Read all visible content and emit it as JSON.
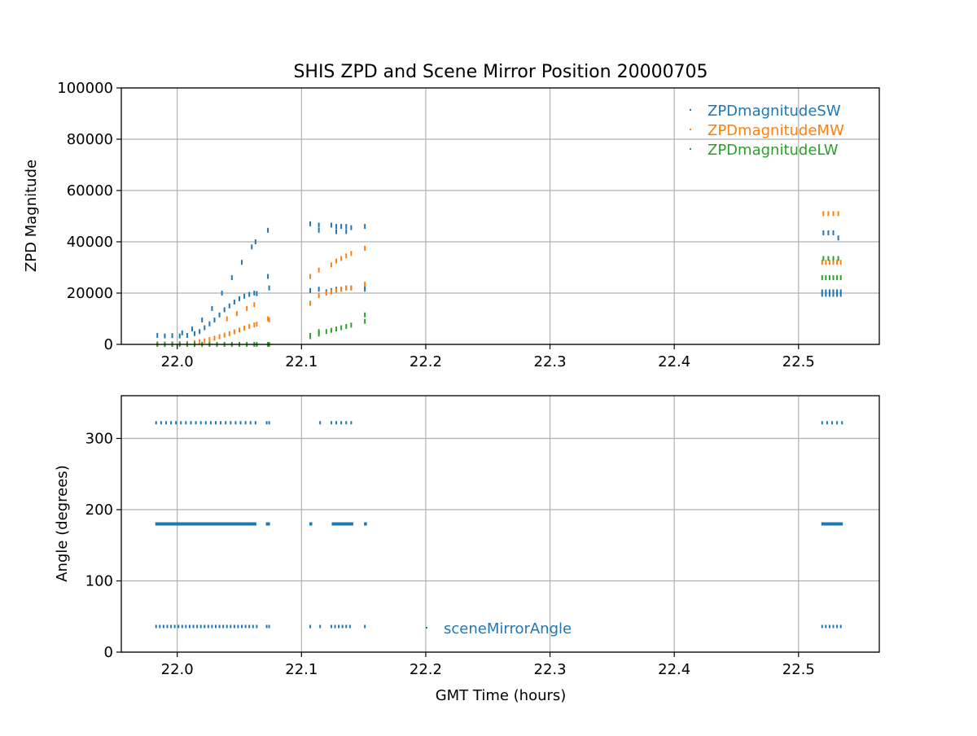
{
  "title": "SHIS ZPD and Scene Mirror Position 20000705",
  "colors": {
    "sw": "#1f77b4",
    "mw": "#ff7f0e",
    "lw": "#2ca02c",
    "angle": "#1f77b4",
    "grid": "#b0b0b0"
  },
  "chart_data": [
    {
      "type": "scatter",
      "title": "SHIS ZPD and Scene Mirror Position 20000705",
      "xlabel": "",
      "ylabel": "ZPD Magnitude",
      "xlim": [
        21.955,
        22.565
      ],
      "ylim": [
        0,
        100000
      ],
      "x_ticks": [
        "22.0",
        "22.1",
        "22.2",
        "22.3",
        "22.4",
        "22.5"
      ],
      "y_ticks": [
        "0",
        "20000",
        "40000",
        "60000",
        "80000",
        "100000"
      ],
      "grid": true,
      "legend": "top-right",
      "series": [
        {
          "name": "ZPDmagnitudeSW",
          "x": [
            21.984,
            21.99,
            21.996,
            22.002,
            22.008,
            22.014,
            22.018,
            22.022,
            22.026,
            22.03,
            22.034,
            22.038,
            22.042,
            22.046,
            22.05,
            22.054,
            22.058,
            22.062,
            22.064,
            22.004,
            22.012,
            22.02,
            22.028,
            22.036,
            22.044,
            22.052,
            22.06,
            22.063,
            22.073,
            22.074,
            22.073,
            22.107,
            22.107,
            22.114,
            22.114,
            22.114,
            22.124,
            22.128,
            22.132,
            22.136,
            22.14,
            22.128,
            22.136,
            22.12,
            22.124,
            22.128,
            22.132,
            22.136,
            22.14,
            22.151,
            22.151,
            22.151,
            22.519,
            22.522,
            22.525,
            22.528,
            22.531,
            22.534,
            22.519,
            22.522,
            22.525,
            22.528,
            22.531,
            22.534,
            22.52,
            22.524,
            22.528,
            22.532
          ],
          "y": [
            3500,
            3300,
            3400,
            3300,
            3500,
            4200,
            5000,
            6500,
            8000,
            9500,
            11500,
            13500,
            15000,
            16500,
            17800,
            18800,
            19500,
            20000,
            19800,
            4500,
            6000,
            9500,
            14000,
            20000,
            26000,
            32000,
            38000,
            40000,
            44500,
            22000,
            26500,
            47000,
            21000,
            46500,
            44500,
            21500,
            46500,
            46000,
            46000,
            46000,
            45500,
            44000,
            44000,
            20500,
            21000,
            21500,
            21500,
            22000,
            22000,
            46000,
            21500,
            22500,
            19500,
            19500,
            19500,
            19500,
            19500,
            19500,
            20500,
            20500,
            20500,
            20500,
            20500,
            20500,
            43500,
            43500,
            43500,
            41500
          ]
        },
        {
          "name": "ZPDmagnitudeMW",
          "x": [
            21.984,
            21.99,
            21.996,
            22.002,
            22.008,
            22.014,
            22.018,
            22.022,
            22.026,
            22.03,
            22.034,
            22.038,
            22.042,
            22.046,
            22.05,
            22.054,
            22.058,
            22.062,
            22.064,
            22.04,
            22.048,
            22.056,
            22.062,
            22.073,
            22.074,
            22.107,
            22.107,
            22.114,
            22.114,
            22.12,
            22.124,
            22.128,
            22.132,
            22.136,
            22.14,
            22.124,
            22.128,
            22.132,
            22.136,
            22.14,
            22.151,
            22.151,
            22.519,
            22.522,
            22.525,
            22.528,
            22.531,
            22.534,
            22.52,
            22.524,
            22.528,
            22.532
          ],
          "y": [
            200,
            200,
            250,
            300,
            400,
            700,
            1000,
            1400,
            1900,
            2400,
            3000,
            3600,
            4200,
            4900,
            5600,
            6300,
            7000,
            7600,
            7900,
            10000,
            12000,
            14000,
            15500,
            10000,
            9500,
            26500,
            16000,
            29000,
            19000,
            20000,
            20500,
            21000,
            21500,
            22000,
            22000,
            31000,
            32500,
            33500,
            34500,
            35500,
            37500,
            23500,
            32000,
            32000,
            32000,
            32000,
            32000,
            32000,
            51000,
            51000,
            51000,
            51000
          ]
        },
        {
          "name": "ZPDmagnitudeLW",
          "x": [
            21.984,
            21.99,
            21.996,
            22.002,
            22.008,
            22.014,
            22.02,
            22.026,
            22.032,
            22.038,
            22.044,
            22.05,
            22.056,
            22.062,
            22.064,
            22.073,
            22.074,
            22.107,
            22.107,
            22.114,
            22.114,
            22.12,
            22.124,
            22.128,
            22.132,
            22.136,
            22.14,
            22.151,
            22.151,
            22.519,
            22.522,
            22.525,
            22.528,
            22.531,
            22.534,
            22.52,
            22.524,
            22.528,
            22.532
          ],
          "y": [
            0,
            0,
            0,
            0,
            0,
            0,
            0,
            0,
            0,
            0,
            0,
            0,
            0,
            0,
            0,
            0,
            0,
            3500,
            3000,
            5000,
            4000,
            5000,
            5500,
            6000,
            6500,
            7000,
            7500,
            11500,
            9000,
            26000,
            26000,
            26000,
            26000,
            26000,
            26000,
            33500,
            33500,
            33500,
            33500
          ]
        }
      ]
    },
    {
      "type": "scatter",
      "title": "",
      "xlabel": "GMT Time (hours)",
      "ylabel": "Angle (degrees)",
      "xlim": [
        21.955,
        22.565
      ],
      "ylim": [
        0,
        360
      ],
      "x_ticks": [
        "22.0",
        "22.1",
        "22.2",
        "22.3",
        "22.4",
        "22.5"
      ],
      "y_ticks": [
        "0",
        "100",
        "200",
        "300"
      ],
      "grid": true,
      "legend": "lower-center",
      "series": [
        {
          "name": "sceneMirrorAngle",
          "segments": [
            {
              "x_start": 21.983,
              "x_end": 22.063,
              "y": 322,
              "step": 0.004
            },
            {
              "x_start": 22.072,
              "x_end": 22.074,
              "y": 322,
              "step": 0.002
            },
            {
              "x_start": 22.115,
              "x_end": 22.115,
              "y": 322,
              "step": 0.004
            },
            {
              "x_start": 22.124,
              "x_end": 22.14,
              "y": 322,
              "step": 0.004
            },
            {
              "x_start": 22.519,
              "x_end": 22.535,
              "y": 322,
              "step": 0.004
            },
            {
              "x_start": 21.983,
              "x_end": 22.063,
              "y": 180,
              "step": 0.001
            },
            {
              "x_start": 22.072,
              "x_end": 22.074,
              "y": 180,
              "step": 0.001
            },
            {
              "x_start": 22.107,
              "x_end": 22.108,
              "y": 180,
              "step": 0.001
            },
            {
              "x_start": 22.125,
              "x_end": 22.141,
              "y": 180,
              "step": 0.001
            },
            {
              "x_start": 22.151,
              "x_end": 22.152,
              "y": 180,
              "step": 0.001
            },
            {
              "x_start": 22.519,
              "x_end": 22.535,
              "y": 180,
              "step": 0.001
            },
            {
              "x_start": 21.983,
              "x_end": 22.063,
              "y": 36,
              "step": 0.003
            },
            {
              "x_start": 22.072,
              "x_end": 22.074,
              "y": 36,
              "step": 0.002
            },
            {
              "x_start": 22.107,
              "x_end": 22.107,
              "y": 36,
              "step": 0.003
            },
            {
              "x_start": 22.115,
              "x_end": 22.115,
              "y": 36,
              "step": 0.003
            },
            {
              "x_start": 22.124,
              "x_end": 22.14,
              "y": 36,
              "step": 0.003
            },
            {
              "x_start": 22.151,
              "x_end": 22.151,
              "y": 36,
              "step": 0.003
            },
            {
              "x_start": 22.519,
              "x_end": 22.535,
              "y": 36,
              "step": 0.003
            }
          ]
        }
      ]
    }
  ]
}
